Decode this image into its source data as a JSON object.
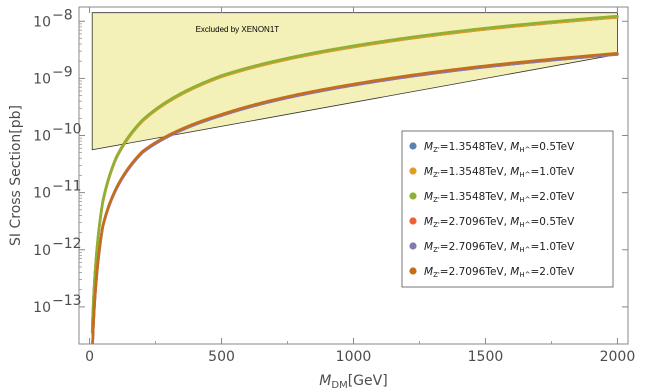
{
  "chart_data": {
    "type": "line",
    "xlabel_main": "M",
    "xlabel_sub": "DM",
    "xlabel_unit": "[GeV]",
    "ylabel": "SI Cross Section[pb]",
    "xlim": [
      -40,
      2040
    ],
    "ylim_log10": [
      -13.65,
      -7.75
    ],
    "log_y": true,
    "x_ticks": [
      0,
      500,
      1000,
      1500,
      2000
    ],
    "x_tick_labels": [
      "0",
      "500",
      "1000",
      "1500",
      "2000"
    ],
    "y_ticks_log10": [
      -13,
      -12,
      -11,
      -10,
      -9,
      -8
    ],
    "y_tick_bases": [
      "10",
      "10",
      "10",
      "10",
      "10",
      "10"
    ],
    "y_tick_exps": [
      "−13",
      "−12",
      "−11",
      "−10",
      "−9",
      "−8"
    ],
    "excluded_region": {
      "label": "Excluded by XENON1T",
      "boundary": [
        [
          10,
          -10.25
        ],
        [
          2000,
          -8.58
        ]
      ],
      "upper": -7.85,
      "color": "#f4f1b8"
    },
    "series": [
      {
        "name": "1.3548TeV, ",
        "mz": "1.3548TeV",
        "mh": "0.5TeV",
        "color": "#5e81b5",
        "x": [
          10,
          50,
          100,
          200,
          500,
          1000,
          1500,
          2000
        ],
        "log10y": [
          -13.45,
          -11.17,
          -10.41,
          -9.75,
          -8.97,
          -8.45,
          -8.14,
          -7.93
        ]
      },
      {
        "name": "",
        "mz": "1.3548TeV",
        "mh": "1.0TeV",
        "color": "#e19c24",
        "x": [
          10,
          50,
          100,
          200,
          500,
          1000,
          1500,
          2000
        ],
        "log10y": [
          -13.45,
          -11.17,
          -10.41,
          -9.75,
          -8.97,
          -8.45,
          -8.14,
          -7.93
        ]
      },
      {
        "name": "",
        "mz": "1.3548TeV",
        "mh": "2.0TeV",
        "color": "#8fb032",
        "x": [
          10,
          50,
          100,
          200,
          500,
          1000,
          1500,
          2000
        ],
        "log10y": [
          -13.43,
          -11.15,
          -10.39,
          -9.73,
          -8.95,
          -8.43,
          -8.12,
          -7.91
        ]
      },
      {
        "name": "",
        "mz": "2.7096TeV",
        "mh": "0.5TeV",
        "color": "#eb6235",
        "x": [
          10,
          50,
          100,
          200,
          500,
          1000,
          1500,
          2000
        ],
        "log10y": [
          -13.85,
          -11.6,
          -10.95,
          -10.3,
          -9.65,
          -9.12,
          -8.8,
          -8.58
        ]
      },
      {
        "name": "",
        "mz": "2.7096TeV",
        "mh": "1.0TeV",
        "color": "#8778b3",
        "x": [
          10,
          50,
          100,
          200,
          500,
          1000,
          1500,
          2000
        ],
        "log10y": [
          -13.85,
          -11.6,
          -10.95,
          -10.3,
          -9.65,
          -9.12,
          -8.8,
          -8.58
        ]
      },
      {
        "name": "",
        "mz": "2.7096TeV",
        "mh": "2.0TeV",
        "color": "#c56e1a",
        "x": [
          10,
          50,
          100,
          200,
          500,
          1000,
          1500,
          2000
        ],
        "log10y": [
          -13.83,
          -11.58,
          -10.93,
          -10.28,
          -9.63,
          -9.1,
          -8.78,
          -8.56
        ]
      }
    ],
    "legend": {
      "placement": "right-middle",
      "entries": [
        {
          "mz_label": "M",
          "mz_sub": "Z'",
          "mz_val": "=1.3548TeV, ",
          "mh_label": "M",
          "mh_sub": "H^",
          "mh_val": "=0.5TeV"
        },
        {
          "mz_label": "M",
          "mz_sub": "Z'",
          "mz_val": "=1.3548TeV, ",
          "mh_label": "M",
          "mh_sub": "H^",
          "mh_val": "=1.0TeV"
        },
        {
          "mz_label": "M",
          "mz_sub": "Z'",
          "mz_val": "=1.3548TeV, ",
          "mh_label": "M",
          "mh_sub": "H^",
          "mh_val": "=2.0TeV"
        },
        {
          "mz_label": "M",
          "mz_sub": "Z'",
          "mz_val": "=2.7096TeV, ",
          "mh_label": "M",
          "mh_sub": "H^",
          "mh_val": "=0.5TeV"
        },
        {
          "mz_label": "M",
          "mz_sub": "Z'",
          "mz_val": "=2.7096TeV, ",
          "mh_label": "M",
          "mh_sub": "H^",
          "mh_val": "=1.0TeV"
        },
        {
          "mz_label": "M",
          "mz_sub": "Z'",
          "mz_val": "=2.7096TeV, ",
          "mh_label": "M",
          "mh_sub": "H^",
          "mh_val": "=2.0TeV"
        }
      ]
    },
    "grid": false
  }
}
